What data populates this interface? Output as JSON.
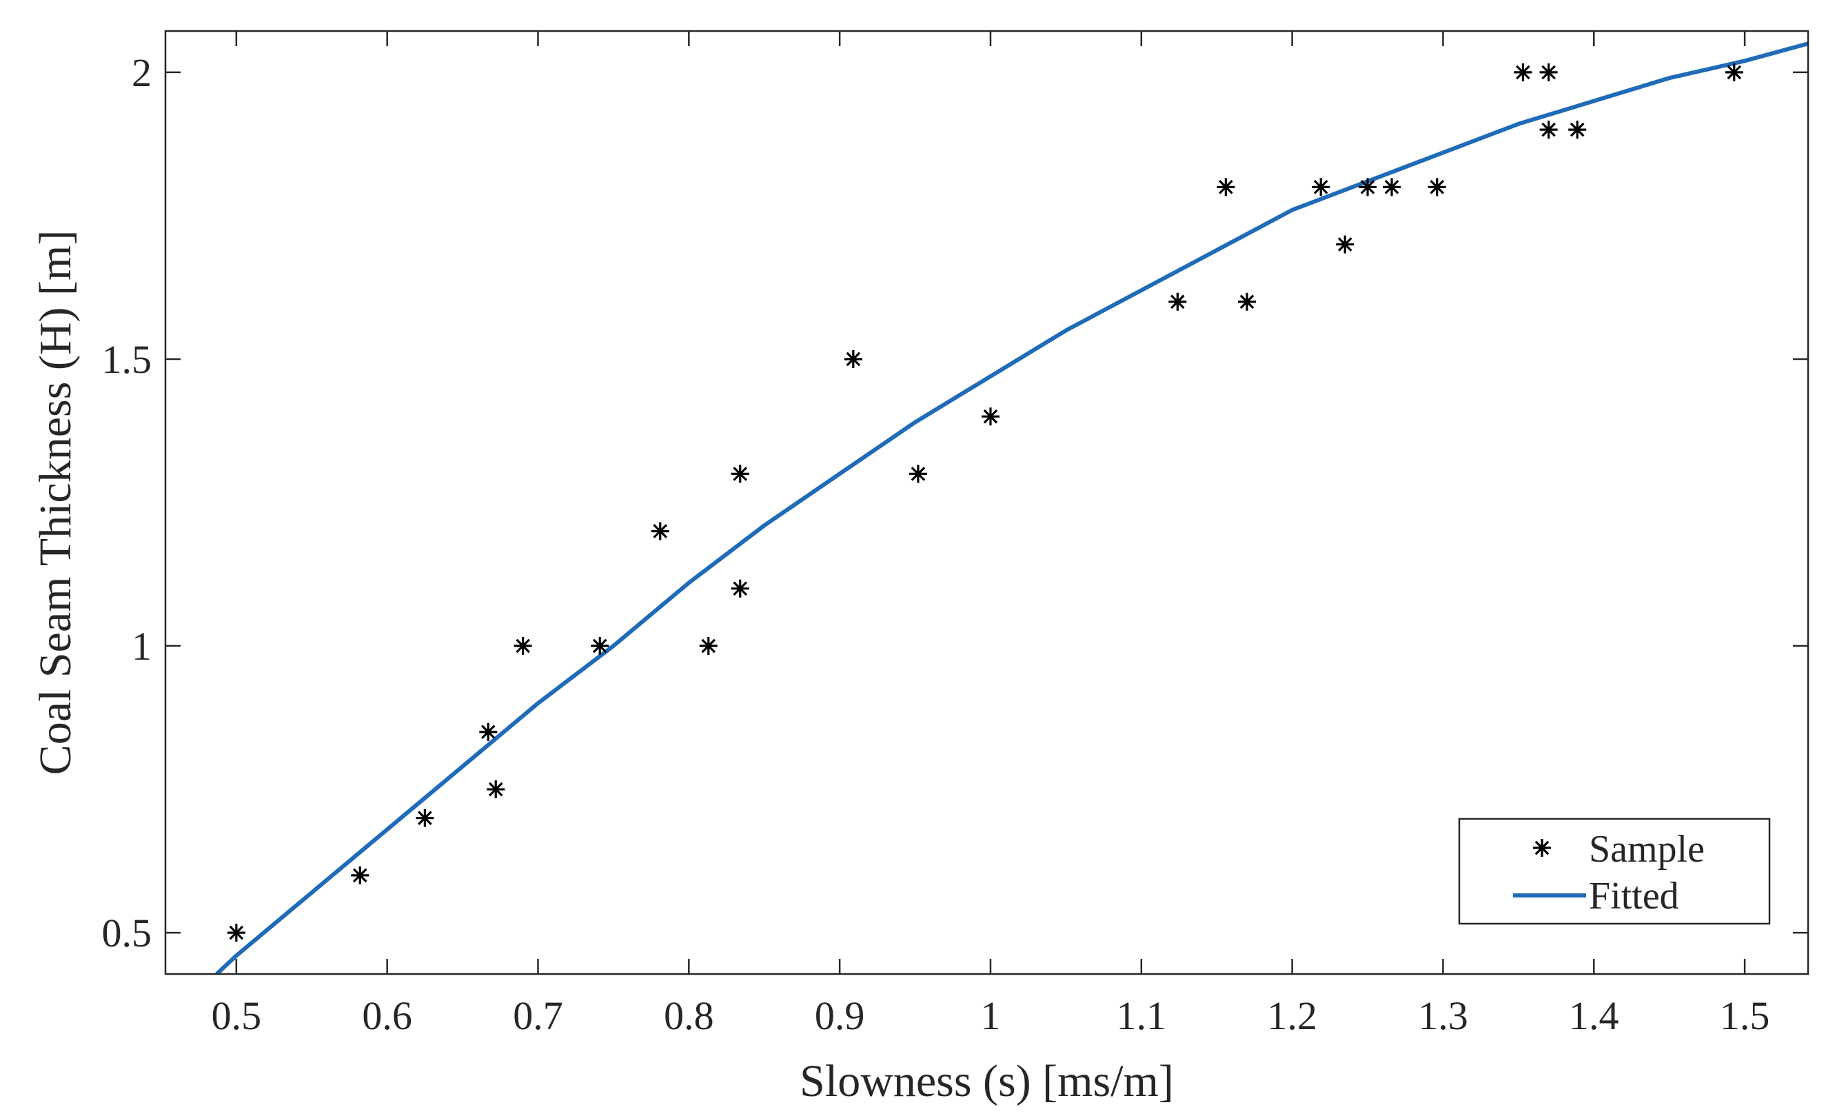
{
  "chart_data": {
    "type": "scatter",
    "title": "",
    "xlabel": "Slowness (s) [ms/m]",
    "ylabel": "Coal Seam Thickness (H)  [m]",
    "xlim": [
      0.453,
      1.542
    ],
    "ylim": [
      0.428,
      2.072
    ],
    "xticks": [
      0.5,
      0.6,
      0.7,
      0.8,
      0.9,
      1.0,
      1.1,
      1.2,
      1.3,
      1.4,
      1.5
    ],
    "xtick_labels": [
      "0.5",
      "0.6",
      "0.7",
      "0.8",
      "0.9",
      "1",
      "1.1",
      "1.2",
      "1.3",
      "1.4",
      "1.5"
    ],
    "yticks": [
      0.5,
      1.0,
      1.5,
      2.0
    ],
    "ytick_labels": [
      "0.5",
      "1",
      "1.5",
      "2"
    ],
    "grid": false,
    "legend_position": "bottom-right",
    "colors": {
      "sample": "#000000",
      "fitted": "#1f6bb8",
      "axis": "#262626"
    },
    "series": [
      {
        "name": "Sample",
        "kind": "scatter",
        "marker": "asterisk",
        "x": [
          0.5,
          0.582,
          0.625,
          0.667,
          0.672,
          0.69,
          0.741,
          0.781,
          0.813,
          0.834,
          0.834,
          0.909,
          0.952,
          1.0,
          1.124,
          1.156,
          1.17,
          1.219,
          1.235,
          1.25,
          1.266,
          1.296,
          1.353,
          1.37,
          1.37,
          1.389,
          1.493
        ],
        "y": [
          0.5,
          0.6,
          0.7,
          0.85,
          0.75,
          1.0,
          1.0,
          1.2,
          1.0,
          1.3,
          1.1,
          1.5,
          1.3,
          1.4,
          1.6,
          1.8,
          1.6,
          1.8,
          1.7,
          1.8,
          1.8,
          1.8,
          2.0,
          2.0,
          1.9,
          1.9,
          2.0
        ]
      },
      {
        "name": "Fitted",
        "kind": "line",
        "x": [
          0.487,
          0.5,
          0.55,
          0.6,
          0.65,
          0.7,
          0.75,
          0.8,
          0.85,
          0.9,
          0.95,
          1.0,
          1.05,
          1.1,
          1.15,
          1.2,
          1.25,
          1.3,
          1.35,
          1.4,
          1.45,
          1.5,
          1.542
        ],
        "y": [
          0.428,
          0.46,
          0.57,
          0.68,
          0.79,
          0.9,
          1.0,
          1.11,
          1.21,
          1.3,
          1.39,
          1.47,
          1.55,
          1.62,
          1.69,
          1.76,
          1.81,
          1.86,
          1.91,
          1.95,
          1.99,
          2.02,
          2.05
        ]
      }
    ]
  }
}
